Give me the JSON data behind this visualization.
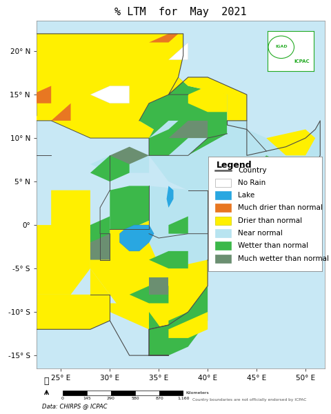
{
  "title": "% LTM  for  May  2021",
  "legend_title": "Legend",
  "legend_items": [
    {
      "label": "Country",
      "type": "line",
      "color": "#555555"
    },
    {
      "label": "No Rain",
      "type": "patch",
      "color": "#FFFFFF",
      "edgecolor": "#AAAAAA"
    },
    {
      "label": "Lake",
      "type": "patch",
      "color": "#29A7E1",
      "edgecolor": "#29A7E1"
    },
    {
      "label": "Much drier than normal",
      "type": "patch",
      "color": "#E87722",
      "edgecolor": "#E87722"
    },
    {
      "label": "Drier than normal",
      "type": "patch",
      "color": "#FFF000",
      "edgecolor": "#CCCC00"
    },
    {
      "label": "Near normal",
      "type": "patch",
      "color": "#B8E4F0",
      "edgecolor": "#B8E4F0"
    },
    {
      "label": "Wetter than normal",
      "type": "patch",
      "color": "#3CB84A",
      "edgecolor": "#3CB84A"
    },
    {
      "label": "Much wetter than normal",
      "type": "patch",
      "color": "#6B8F71",
      "edgecolor": "#6B8F71"
    }
  ],
  "xlabel_ticks": [
    "25° E",
    "30° E",
    "35° E",
    "40° E",
    "45° E",
    "50° E"
  ],
  "xlabel_vals": [
    25,
    30,
    35,
    40,
    45,
    50
  ],
  "ylabel_ticks": [
    "-15° S",
    "-10° S",
    "-5° S",
    "0°",
    "5° N",
    "10° N",
    "15° N",
    "20° N"
  ],
  "ylabel_vals": [
    -15,
    -10,
    -5,
    0,
    5,
    10,
    15,
    20
  ],
  "xlim": [
    22.5,
    52
  ],
  "ylim": [
    -16.5,
    23.5
  ],
  "data_source": "Data: CHIRPS @ ICPAC",
  "disclaimer": "Country boundaries are not officially endorsed by ICPAC",
  "scale_labels": [
    "0",
    "145",
    "290",
    "580",
    "870",
    "1,160"
  ],
  "scale_unit": "Kilometers",
  "ocean_color": "#C8E8F5",
  "title_fontsize": 11,
  "axis_fontsize": 7.5,
  "legend_fontsize": 8
}
